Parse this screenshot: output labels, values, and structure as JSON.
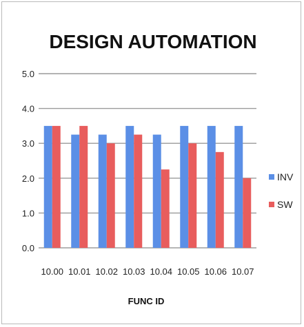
{
  "chart_data": {
    "type": "bar",
    "title": "DESIGN AUTOMATION",
    "xlabel": "FUNC ID",
    "ylabel": "",
    "categories": [
      "10.00",
      "10.01",
      "10.02",
      "10.03",
      "10.04",
      "10.05",
      "10.06",
      "10.07"
    ],
    "series": [
      {
        "name": "INV",
        "color": "#5b8fe6",
        "values": [
          3.5,
          3.25,
          3.25,
          3.5,
          3.25,
          3.5,
          3.5,
          3.5
        ]
      },
      {
        "name": "SW",
        "color": "#e85d5d",
        "values": [
          3.5,
          3.5,
          3.0,
          3.25,
          2.25,
          3.0,
          2.75,
          2.0
        ]
      }
    ],
    "ylim": [
      0,
      5
    ],
    "yticks": [
      "0.0",
      "1.0",
      "2.0",
      "3.0",
      "4.0",
      "5.0"
    ],
    "grid": true,
    "legend": "right"
  }
}
